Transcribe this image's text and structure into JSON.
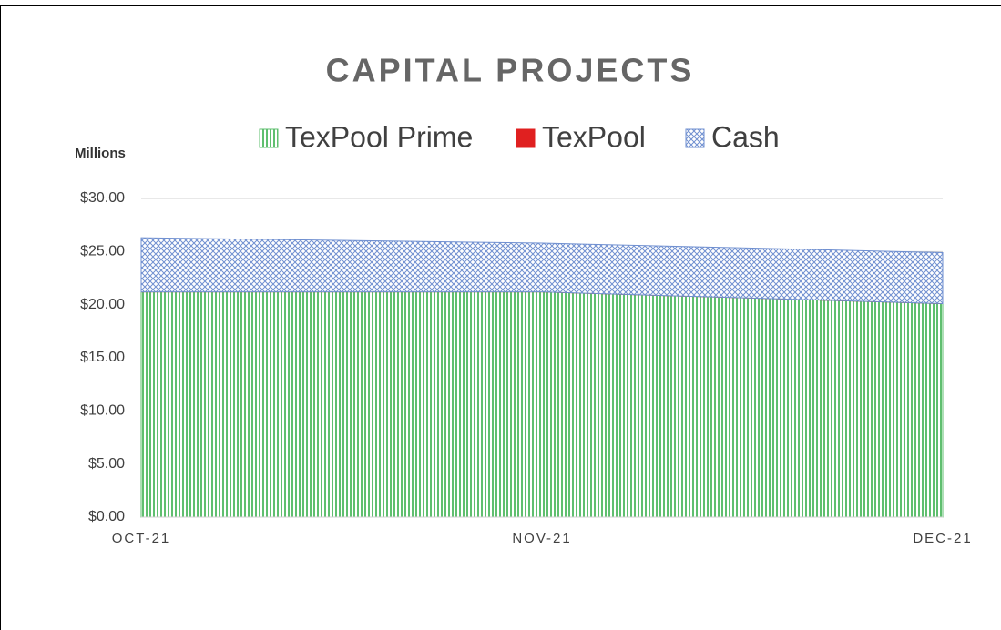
{
  "chart_data": {
    "type": "stacked_area",
    "title": "CAPITAL PROJECTS",
    "y_axis_label": "Millions",
    "categories": [
      "OCT-21",
      "NOV-21",
      "DEC-21"
    ],
    "series": [
      {
        "name": "TexPool Prime",
        "color": "#5fbf6f",
        "values": [
          21.2,
          21.2,
          20.1
        ]
      },
      {
        "name": "TexPool",
        "color": "#e02020",
        "values": [
          0,
          0,
          0
        ]
      },
      {
        "name": "Cash",
        "color": "#6f8fd0",
        "values": [
          5.1,
          4.6,
          4.8
        ]
      }
    ],
    "ylim": [
      0,
      30
    ],
    "yticks": [
      {
        "value": 0,
        "label": "$0.00"
      },
      {
        "value": 5,
        "label": "$5.00"
      },
      {
        "value": 10,
        "label": "$10.00"
      },
      {
        "value": 15,
        "label": "$15.00"
      },
      {
        "value": 20,
        "label": "$20.00"
      },
      {
        "value": 25,
        "label": "$25.00"
      },
      {
        "value": 30,
        "label": "$30.00"
      }
    ],
    "grid": true,
    "legend": "top"
  }
}
